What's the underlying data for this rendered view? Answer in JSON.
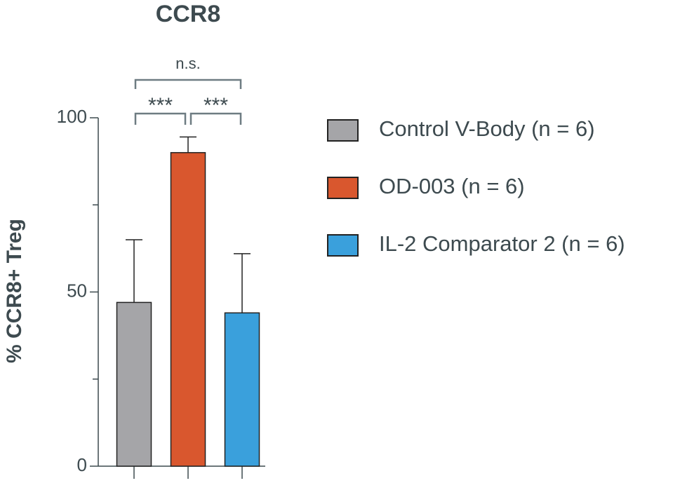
{
  "chart_data": {
    "type": "bar",
    "title": "CCR8",
    "y_label": "% CCR8+ Treg",
    "series": [
      {
        "name": "Control V-Body (n = 6)",
        "color": "#a5a5a8",
        "values": [
          47
        ],
        "errors": [
          18
        ]
      },
      {
        "name": "OD-003 (n = 6)",
        "color": "#d9572e",
        "values": [
          90
        ],
        "errors": [
          4.5
        ]
      },
      {
        "name": "IL-2 Comparator 2 (n = 6)",
        "color": "#3aa0dc",
        "values": [
          44
        ],
        "errors": [
          17
        ]
      }
    ],
    "ylim": [
      0,
      100
    ],
    "yticks": [
      0,
      50,
      100
    ],
    "minor_yticks": [
      25,
      75
    ],
    "annotations": [
      "***",
      "***",
      "n.s."
    ],
    "legend": "right"
  }
}
